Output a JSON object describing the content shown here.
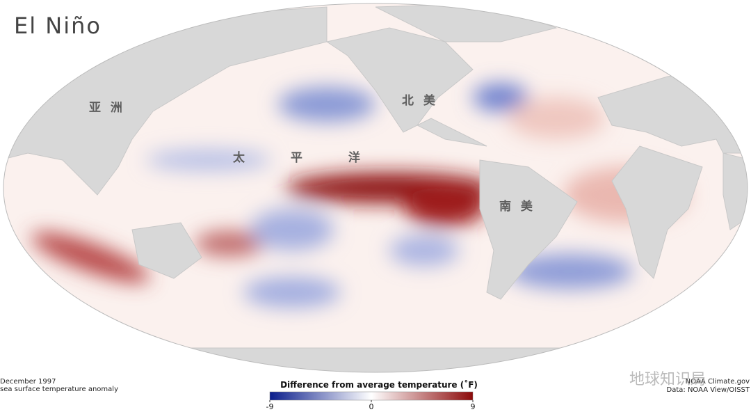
{
  "title": "El Niño",
  "map": {
    "labels": [
      "亚 洲",
      "太 平 洋",
      "北 美",
      "南 美"
    ]
  },
  "footer": {
    "date": "December 1997",
    "description": "sea surface temperature anomaly",
    "credit": "NOAA Climate.gov",
    "source": "Data: NOAA View/OISST"
  },
  "legend": {
    "title": "Difference from average temperature (˚F)",
    "range": [
      -9,
      9
    ],
    "ticks": [
      -9,
      0,
      9
    ],
    "colors": [
      "#0b1e8c",
      "#ffffff",
      "#8c0a0a"
    ]
  },
  "watermark": "地球知识局"
}
